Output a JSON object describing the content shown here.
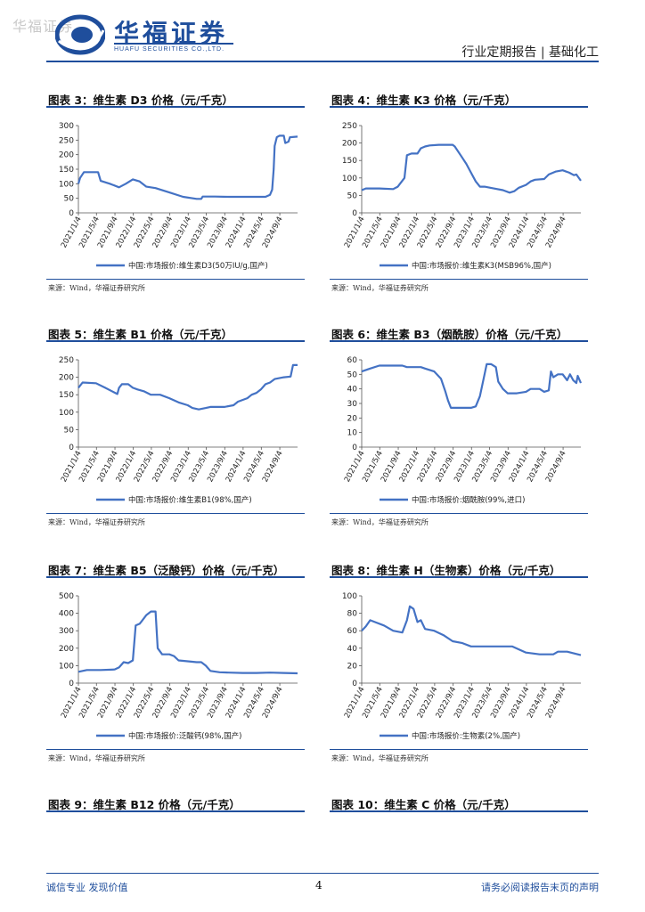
{
  "header": {
    "watermark": "华福证券",
    "logo_name": "华福证券",
    "logo_en": "HUAFU SECURITIES CO.,LTD.",
    "report_type": "行业定期报告 | 基础化工"
  },
  "panels": [
    {
      "title": "图表 3：维生素 D3 价格（元/千克）",
      "source": "来源：Wind，华福证券研究所",
      "legend": "中国:市场报价:维生素D3(50万IU/g,国产)"
    },
    {
      "title": "图表 4：维生素 K3 价格（元/千克）",
      "source": "来源：Wind，华福证券研究所",
      "legend": "中国:市场报价:维生素K3(MSB96%,国产)"
    },
    {
      "title": "图表 5：维生素 B1 价格（元/千克）",
      "source": "来源：Wind，华福证券研究所",
      "legend": "中国:市场报价:维生素B1(98%,国产)"
    },
    {
      "title": "图表 6：维生素 B3（烟酰胺）价格（元/千克）",
      "source": "来源：Wind，华福证券研究所",
      "legend": "中国:市场报价:烟酰胺(99%,进口)"
    },
    {
      "title": "图表 7：维生素 B5（泛酸钙）价格（元/千克）",
      "source": "来源：Wind，华福证券研究所",
      "legend": "中国:市场报价:泛酸钙(98%,国产)"
    },
    {
      "title": "图表 8：维生素 H（生物素）价格（元/千克）",
      "source": "来源：Wind，华福证券研究所",
      "legend": "中国:市场报价:生物素(2%,国产)"
    },
    {
      "title": "图表 9：维生素 B12 价格（元/千克）"
    },
    {
      "title": "图表 10：维生素 C 价格（元/千克）"
    }
  ],
  "footer": {
    "left": "诚信专业  发现价值",
    "page": "4",
    "right": "请务必阅读报告末页的声明"
  },
  "chart_data": [
    {
      "type": "line",
      "xtype": "date",
      "ylim": [
        0,
        300
      ],
      "yticks": [
        0,
        50,
        100,
        150,
        200,
        250,
        300
      ],
      "xticks": [
        "2021/1/4",
        "2021/5/4",
        "2021/9/4",
        "2022/1/4",
        "2022/5/4",
        "2022/9/4",
        "2023/1/4",
        "2023/5/4",
        "2023/9/4",
        "2024/1/4",
        "2024/5/4",
        "2024/9/4"
      ],
      "color": "#4472c4",
      "series": [
        {
          "name": "中国:市场报价:维生素D3(50万IU/g,国产)",
          "points": [
            [
              "2021/1/4",
              100
            ],
            [
              "2021/1/15",
              120
            ],
            [
              "2021/2/10",
              140
            ],
            [
              "2021/5/15",
              140
            ],
            [
              "2021/6/1",
              110
            ],
            [
              "2021/8/1",
              100
            ],
            [
              "2021/10/1",
              88
            ],
            [
              "2021/11/15",
              100
            ],
            [
              "2022/1/1",
              115
            ],
            [
              "2022/2/15",
              108
            ],
            [
              "2022/4/1",
              90
            ],
            [
              "2022/6/1",
              85
            ],
            [
              "2022/9/1",
              70
            ],
            [
              "2022/12/1",
              55
            ],
            [
              "2023/3/1",
              48
            ],
            [
              "2023/4/1",
              48
            ],
            [
              "2023/4/10",
              56
            ],
            [
              "2023/7/1",
              56
            ],
            [
              "2023/10/1",
              55
            ],
            [
              "2024/1/1",
              55
            ],
            [
              "2024/4/1",
              55
            ],
            [
              "2024/6/1",
              55
            ],
            [
              "2024/7/1",
              62
            ],
            [
              "2024/7/15",
              80
            ],
            [
              "2024/7/25",
              150
            ],
            [
              "2024/8/1",
              230
            ],
            [
              "2024/8/15",
              260
            ],
            [
              "2024/9/1",
              265
            ],
            [
              "2024/10/1",
              265
            ],
            [
              "2024/10/10",
              240
            ],
            [
              "2024/11/1",
              245
            ],
            [
              "2024/11/10",
              260
            ],
            [
              "2024/12/31",
              262
            ]
          ]
        }
      ]
    },
    {
      "type": "line",
      "xtype": "date",
      "ylim": [
        0,
        250
      ],
      "yticks": [
        0,
        50,
        100,
        150,
        200,
        250
      ],
      "xticks": [
        "2021/1/4",
        "2021/5/4",
        "2021/9/4",
        "2022/1/4",
        "2022/5/4",
        "2022/9/4",
        "2023/1/4",
        "2023/5/4",
        "2023/9/4",
        "2024/1/4",
        "2024/5/4",
        "2024/9/4"
      ],
      "color": "#4472c4",
      "series": [
        {
          "name": "中国:市场报价:维生素K3(MSB96%,国产)",
          "points": [
            [
              "2021/1/4",
              65
            ],
            [
              "2021/2/1",
              70
            ],
            [
              "2021/5/1",
              70
            ],
            [
              "2021/8/1",
              68
            ],
            [
              "2021/9/1",
              75
            ],
            [
              "2021/10/15",
              100
            ],
            [
              "2021/11/1",
              165
            ],
            [
              "2021/12/1",
              170
            ],
            [
              "2022/1/10",
              170
            ],
            [
              "2022/2/1",
              185
            ],
            [
              "2022/3/1",
              190
            ],
            [
              "2022/4/1",
              193
            ],
            [
              "2022/6/1",
              195
            ],
            [
              "2022/9/1",
              195
            ],
            [
              "2022/9/15",
              190
            ],
            [
              "2022/11/1",
              160
            ],
            [
              "2022/12/1",
              140
            ],
            [
              "2023/1/1",
              115
            ],
            [
              "2023/2/1",
              90
            ],
            [
              "2023/3/1",
              75
            ],
            [
              "2023/4/1",
              75
            ],
            [
              "2023/6/1",
              70
            ],
            [
              "2023/8/1",
              65
            ],
            [
              "2023/9/15",
              58
            ],
            [
              "2023/10/15",
              62
            ],
            [
              "2023/11/15",
              72
            ],
            [
              "2024/1/1",
              80
            ],
            [
              "2024/2/1",
              90
            ],
            [
              "2024/3/1",
              95
            ],
            [
              "2024/5/1",
              97
            ],
            [
              "2024/6/1",
              110
            ],
            [
              "2024/7/15",
              118
            ],
            [
              "2024/9/1",
              122
            ],
            [
              "2024/10/15",
              115
            ],
            [
              "2024/11/15",
              108
            ],
            [
              "2024/12/1",
              110
            ],
            [
              "2024/12/31",
              92
            ]
          ]
        }
      ]
    },
    {
      "type": "line",
      "xtype": "date",
      "ylim": [
        0,
        250
      ],
      "yticks": [
        0,
        50,
        100,
        150,
        200,
        250
      ],
      "xticks": [
        "2021/1/4",
        "2021/5/4",
        "2021/9/4",
        "2022/1/4",
        "2022/5/4",
        "2022/9/4",
        "2023/1/4",
        "2023/5/4",
        "2023/9/4",
        "2024/1/4",
        "2024/5/4",
        "2024/9/4"
      ],
      "color": "#4472c4",
      "series": [
        {
          "name": "中国:市场报价:维生素B1(98%,国产)",
          "points": [
            [
              "2021/1/4",
              170
            ],
            [
              "2021/2/1",
              185
            ],
            [
              "2021/5/1",
              183
            ],
            [
              "2021/7/1",
              170
            ],
            [
              "2021/8/15",
              160
            ],
            [
              "2021/9/20",
              152
            ],
            [
              "2021/10/1",
              170
            ],
            [
              "2021/10/20",
              180
            ],
            [
              "2021/12/1",
              180
            ],
            [
              "2022/1/1",
              170
            ],
            [
              "2022/2/1",
              165
            ],
            [
              "2022/3/15",
              160
            ],
            [
              "2022/5/1",
              150
            ],
            [
              "2022/7/1",
              150
            ],
            [
              "2022/9/1",
              140
            ],
            [
              "2022/11/1",
              128
            ],
            [
              "2023/1/1",
              120
            ],
            [
              "2023/2/1",
              112
            ],
            [
              "2023/3/15",
              108
            ],
            [
              "2023/5/1",
              112
            ],
            [
              "2023/6/1",
              115
            ],
            [
              "2023/9/1",
              115
            ],
            [
              "2023/11/1",
              120
            ],
            [
              "2023/12/1",
              130
            ],
            [
              "2024/2/1",
              140
            ],
            [
              "2024/3/1",
              150
            ],
            [
              "2024/4/1",
              155
            ],
            [
              "2024/5/1",
              165
            ],
            [
              "2024/6/1",
              180
            ],
            [
              "2024/7/1",
              185
            ],
            [
              "2024/8/1",
              195
            ],
            [
              "2024/10/1",
              200
            ],
            [
              "2024/11/15",
              202
            ],
            [
              "2024/12/1",
              235
            ],
            [
              "2024/12/31",
              235
            ]
          ]
        }
      ]
    },
    {
      "type": "line",
      "xtype": "date",
      "ylim": [
        0,
        60
      ],
      "yticks": [
        0,
        10,
        20,
        30,
        40,
        50,
        60
      ],
      "xticks": [
        "2021/1/4",
        "2021/5/4",
        "2021/9/4",
        "2022/1/4",
        "2022/5/4",
        "2022/9/4",
        "2023/1/4",
        "2023/5/4",
        "2023/9/4",
        "2024/1/4",
        "2024/5/4",
        "2024/9/4"
      ],
      "color": "#4472c4",
      "series": [
        {
          "name": "中国:市场报价:烟酰胺(99%,进口)",
          "points": [
            [
              "2021/1/4",
              52
            ],
            [
              "2021/3/1",
              54
            ],
            [
              "2021/5/1",
              56
            ],
            [
              "2021/10/1",
              56
            ],
            [
              "2021/11/1",
              55
            ],
            [
              "2022/2/1",
              55
            ],
            [
              "2022/3/1",
              54
            ],
            [
              "2022/5/1",
              52
            ],
            [
              "2022/6/15",
              47
            ],
            [
              "2022/7/15",
              38
            ],
            [
              "2022/8/1",
              32
            ],
            [
              "2022/8/20",
              27
            ],
            [
              "2022/10/1",
              27
            ],
            [
              "2023/1/1",
              27
            ],
            [
              "2023/2/1",
              28
            ],
            [
              "2023/3/1",
              35
            ],
            [
              "2023/4/1",
              50
            ],
            [
              "2023/4/15",
              57
            ],
            [
              "2023/5/15",
              57
            ],
            [
              "2023/6/15",
              55
            ],
            [
              "2023/7/1",
              45
            ],
            [
              "2023/8/1",
              40
            ],
            [
              "2023/9/1",
              37
            ],
            [
              "2023/11/1",
              37
            ],
            [
              "2024/1/1",
              38
            ],
            [
              "2024/2/1",
              40
            ],
            [
              "2024/4/1",
              40
            ],
            [
              "2024/5/1",
              38
            ],
            [
              "2024/6/1",
              39
            ],
            [
              "2024/6/15",
              52
            ],
            [
              "2024/7/1",
              48
            ],
            [
              "2024/8/1",
              50
            ],
            [
              "2024/9/1",
              50
            ],
            [
              "2024/10/1",
              46
            ],
            [
              "2024/10/20",
              50
            ],
            [
              "2024/11/10",
              46
            ],
            [
              "2024/12/1",
              44
            ],
            [
              "2024/12/10",
              49
            ],
            [
              "2024/12/31",
              44
            ]
          ]
        }
      ]
    },
    {
      "type": "line",
      "xtype": "date",
      "ylim": [
        0,
        500
      ],
      "yticks": [
        0,
        100,
        200,
        300,
        400,
        500
      ],
      "xticks": [
        "2021/1/4",
        "2021/5/4",
        "2021/9/4",
        "2022/1/4",
        "2022/5/4",
        "2022/9/4",
        "2023/1/4",
        "2023/5/4",
        "2023/9/4",
        "2024/1/4",
        "2024/5/4",
        "2024/9/4"
      ],
      "color": "#4472c4",
      "series": [
        {
          "name": "中国:市场报价:泛酸钙(98%,国产)",
          "points": [
            [
              "2021/1/4",
              65
            ],
            [
              "2021/3/1",
              75
            ],
            [
              "2021/6/1",
              75
            ],
            [
              "2021/9/1",
              78
            ],
            [
              "2021/10/1",
              90
            ],
            [
              "2021/11/1",
              120
            ],
            [
              "2021/12/1",
              115
            ],
            [
              "2022/1/1",
              130
            ],
            [
              "2022/1/20",
              330
            ],
            [
              "2022/2/15",
              340
            ],
            [
              "2022/3/1",
              355
            ],
            [
              "2022/4/1",
              390
            ],
            [
              "2022/5/1",
              410
            ],
            [
              "2022/6/1",
              410
            ],
            [
              "2022/6/15",
              200
            ],
            [
              "2022/7/15",
              165
            ],
            [
              "2022/9/1",
              165
            ],
            [
              "2022/10/1",
              155
            ],
            [
              "2022/11/1",
              130
            ],
            [
              "2023/1/1",
              125
            ],
            [
              "2023/3/1",
              120
            ],
            [
              "2023/4/1",
              120
            ],
            [
              "2023/5/1",
              100
            ],
            [
              "2023/6/1",
              70
            ],
            [
              "2023/8/1",
              62
            ],
            [
              "2023/10/1",
              60
            ],
            [
              "2024/1/1",
              58
            ],
            [
              "2024/4/1",
              58
            ],
            [
              "2024/7/1",
              60
            ],
            [
              "2024/10/1",
              58
            ],
            [
              "2024/12/31",
              56
            ]
          ]
        }
      ]
    },
    {
      "type": "line",
      "xtype": "date",
      "ylim": [
        0,
        100
      ],
      "yticks": [
        0,
        20,
        40,
        60,
        80,
        100
      ],
      "xticks": [
        "2021/1/4",
        "2021/5/4",
        "2021/9/4",
        "2022/1/4",
        "2022/5/4",
        "2022/9/4",
        "2023/1/4",
        "2023/5/4",
        "2023/9/4",
        "2024/1/4",
        "2024/5/4",
        "2024/9/4"
      ],
      "color": "#4472c4",
      "series": [
        {
          "name": "中国:市场报价:生物素(2%,国产)",
          "points": [
            [
              "2021/1/4",
              60
            ],
            [
              "2021/2/1",
              65
            ],
            [
              "2021/3/1",
              72
            ],
            [
              "2021/4/1",
              70
            ],
            [
              "2021/6/1",
              66
            ],
            [
              "2021/8/1",
              60
            ],
            [
              "2021/10/1",
              58
            ],
            [
              "2021/11/1",
              72
            ],
            [
              "2021/11/20",
              88
            ],
            [
              "2021/12/15",
              85
            ],
            [
              "2022/1/10",
              70
            ],
            [
              "2022/2/1",
              72
            ],
            [
              "2022/3/1",
              62
            ],
            [
              "2022/5/1",
              60
            ],
            [
              "2022/7/1",
              55
            ],
            [
              "2022/9/1",
              48
            ],
            [
              "2022/11/1",
              46
            ],
            [
              "2023/1/1",
              42
            ],
            [
              "2023/4/1",
              42
            ],
            [
              "2023/7/1",
              42
            ],
            [
              "2023/10/1",
              42
            ],
            [
              "2024/1/1",
              35
            ],
            [
              "2024/4/1",
              33
            ],
            [
              "2024/7/1",
              33
            ],
            [
              "2024/8/1",
              36
            ],
            [
              "2024/10/1",
              36
            ],
            [
              "2024/12/31",
              32
            ]
          ]
        }
      ]
    }
  ]
}
